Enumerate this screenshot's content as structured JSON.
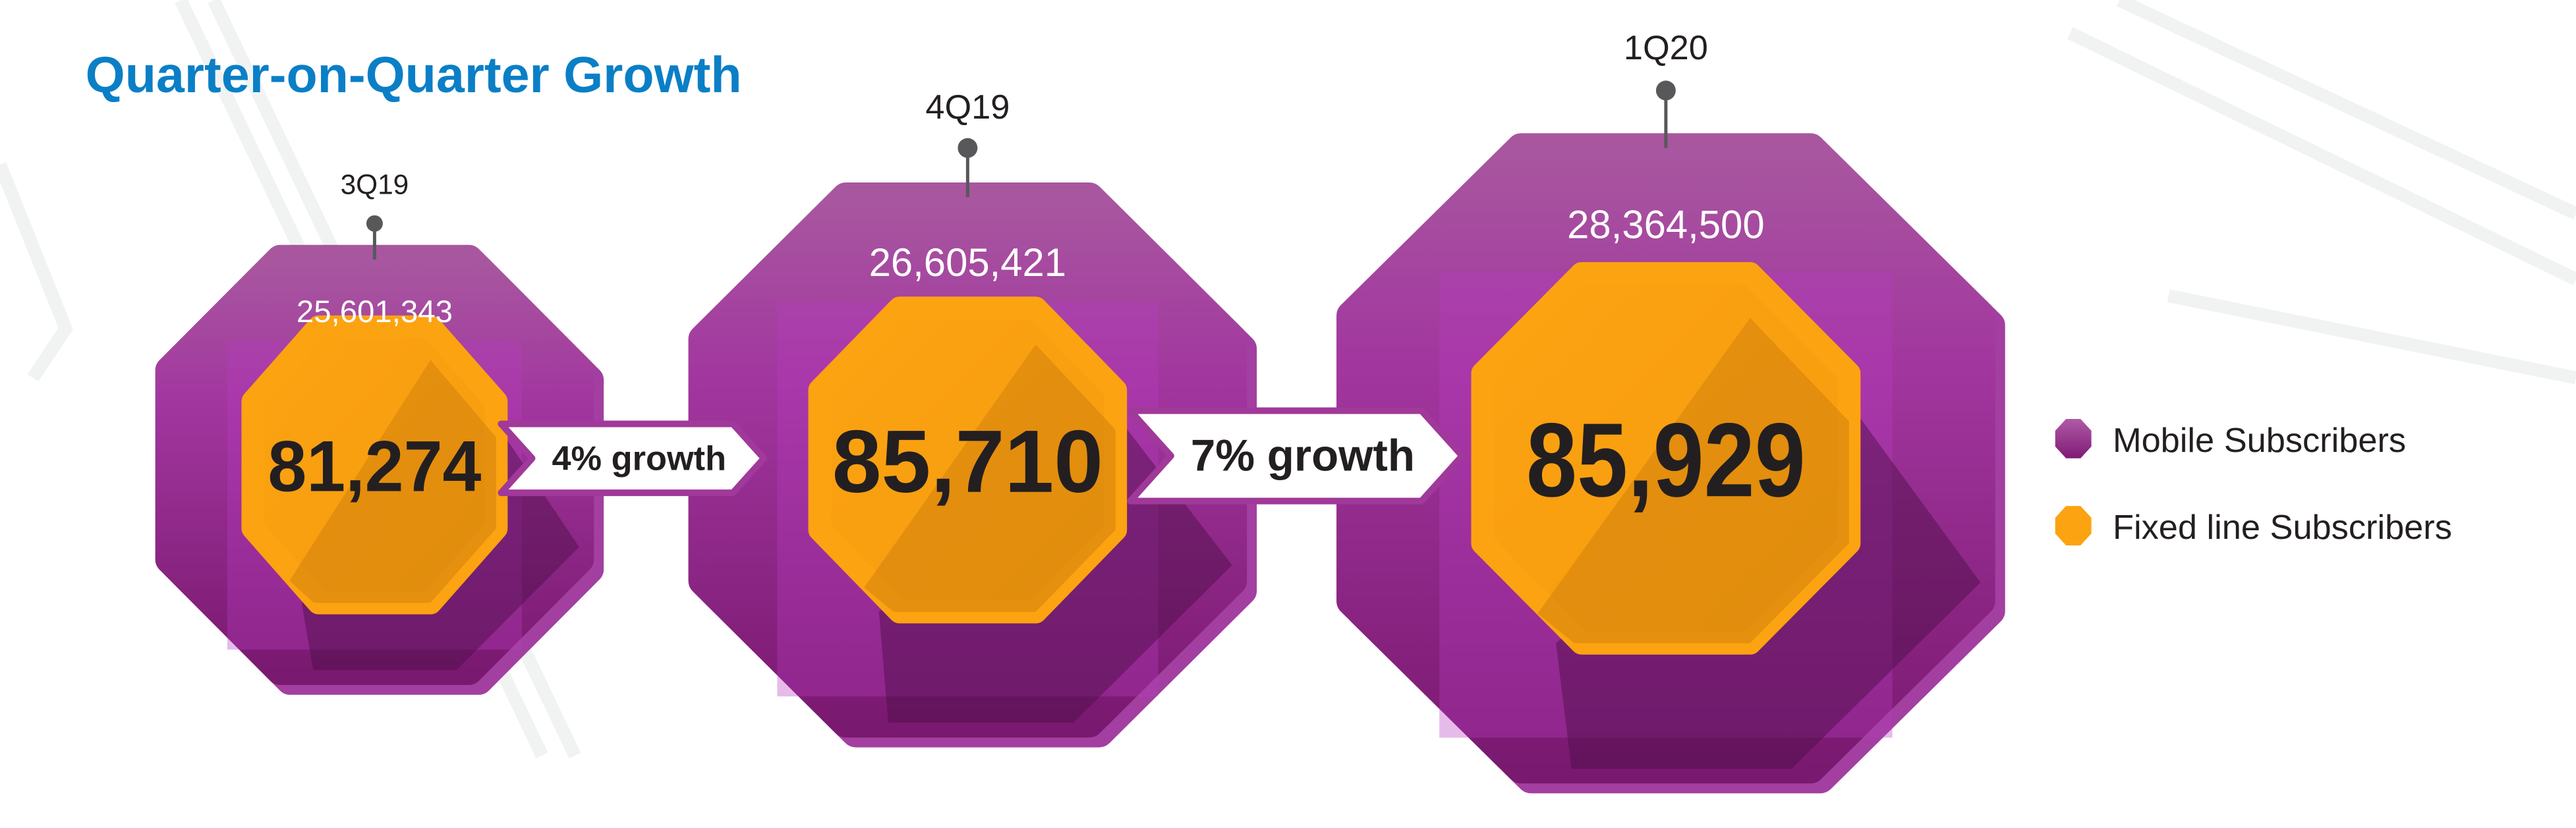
{
  "chart_data": {
    "type": "infographic-octagons",
    "title": "Quarter-on-Quarter Growth",
    "categories": [
      "3Q19",
      "4Q19",
      "1Q20"
    ],
    "series": [
      {
        "name": "Mobile Subscribers",
        "values": [
          25601343,
          26605421,
          28364500
        ],
        "labels": [
          "25,601,343",
          "26,605,421",
          "28,364,500"
        ],
        "color": "#a0399a"
      },
      {
        "name": "Fixed line Subscribers",
        "values": [
          81274,
          85710,
          85929
        ],
        "labels": [
          "81,274",
          "85,710",
          "85,929"
        ],
        "color": "#fba012"
      }
    ],
    "annotations": [
      "4% growth",
      "7% growth"
    ],
    "legend": {
      "position": "right",
      "items": [
        "Mobile Subscribers",
        "Fixed line Subscribers"
      ]
    }
  },
  "colors": {
    "title": "#0a7fc6",
    "mobile": "#a0399a",
    "mobile_dark": "#7a1a72",
    "fixed": "#fba012",
    "text": "#231f20"
  }
}
